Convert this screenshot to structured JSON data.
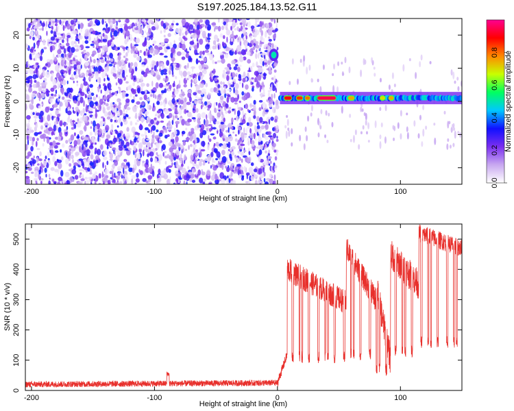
{
  "title": "S197.2025.184.13.52.G11",
  "colors": {
    "snr_line": "#e8302c",
    "frame": "#000000"
  },
  "chart_data": [
    {
      "type": "heatmap",
      "xlabel": "Height of straight line (km)",
      "ylabel": "Frequency (Hz)",
      "xlim": [
        -205,
        150
      ],
      "ylim": [
        -25,
        25
      ],
      "xticks": [
        -200,
        -100,
        0,
        100
      ],
      "yticks": [
        -20,
        -10,
        0,
        10,
        20
      ],
      "colorbar": {
        "label": "Normalized spectral amplitude",
        "range": [
          0,
          1
        ],
        "ticks": [
          "0.0",
          "0.2",
          "0.4",
          "0.6",
          "0.8"
        ],
        "tick_values": [
          0.0,
          0.2,
          0.4,
          0.6,
          0.8
        ],
        "colormap": [
          "#ffffff",
          "#c8a8f0",
          "#7a2ff0",
          "#1010ff",
          "#00c8ff",
          "#00ff60",
          "#c8ff00",
          "#ff8800",
          "#ff0000",
          "#ff0090"
        ]
      },
      "features": {
        "noise_region_x": [
          -205,
          0
        ],
        "burst": {
          "x": -3,
          "y": 14,
          "amplitude": 0.5
        },
        "signal_band": {
          "x_start": 2,
          "x_end": 150,
          "frequency": 1
        },
        "hot_segments": [
          {
            "x_start": 5,
            "x_end": 12,
            "amplitude": 0.9
          },
          {
            "x_start": 15,
            "x_end": 21,
            "amplitude": 0.85
          },
          {
            "x_start": 22,
            "x_end": 27,
            "amplitude": 0.8
          },
          {
            "x_start": 32,
            "x_end": 48,
            "amplitude": 0.95
          },
          {
            "x_start": 57,
            "x_end": 63,
            "amplitude": 0.75
          },
          {
            "x_start": 83,
            "x_end": 88,
            "amplitude": 0.7
          },
          {
            "x_start": 90,
            "x_end": 95,
            "amplitude": 0.75
          }
        ]
      }
    },
    {
      "type": "line",
      "xlabel": "Height of straight line (km)",
      "ylabel": "SNR (10 * v/v)",
      "xlim": [
        -205,
        150
      ],
      "ylim": [
        0,
        550
      ],
      "xticks": [
        -200,
        -100,
        0,
        100
      ],
      "yticks": [
        0,
        100,
        200,
        300,
        400,
        500
      ],
      "series": [
        {
          "segments": [
            {
              "x": [
                -205,
                0
              ],
              "y": [
                20,
                25
              ],
              "noise": 10
            },
            {
              "x": [
                -90,
                -88
              ],
              "y": [
                55,
                40
              ],
              "noise": 8
            },
            {
              "x": [
                0,
                8
              ],
              "y": [
                25,
                120
              ],
              "noise": 15
            },
            {
              "x": [
                8,
                56
              ],
              "y": [
                400,
                290
              ],
              "noise": 40,
              "dropouts_to": 110
            },
            {
              "x": [
                56,
                80
              ],
              "y": [
                470,
                300
              ],
              "noise": 40,
              "dropouts_to": 120
            },
            {
              "x": [
                80,
                92
              ],
              "y": [
                350,
                100
              ],
              "noise": 50,
              "dropouts_to": 70
            },
            {
              "x": [
                92,
                115
              ],
              "y": [
                450,
                350
              ],
              "noise": 50,
              "dropouts_to": 130
            },
            {
              "x": [
                115,
                150
              ],
              "y": [
                520,
                470
              ],
              "noise": 30,
              "dropouts_to": 160
            }
          ]
        }
      ]
    }
  ]
}
